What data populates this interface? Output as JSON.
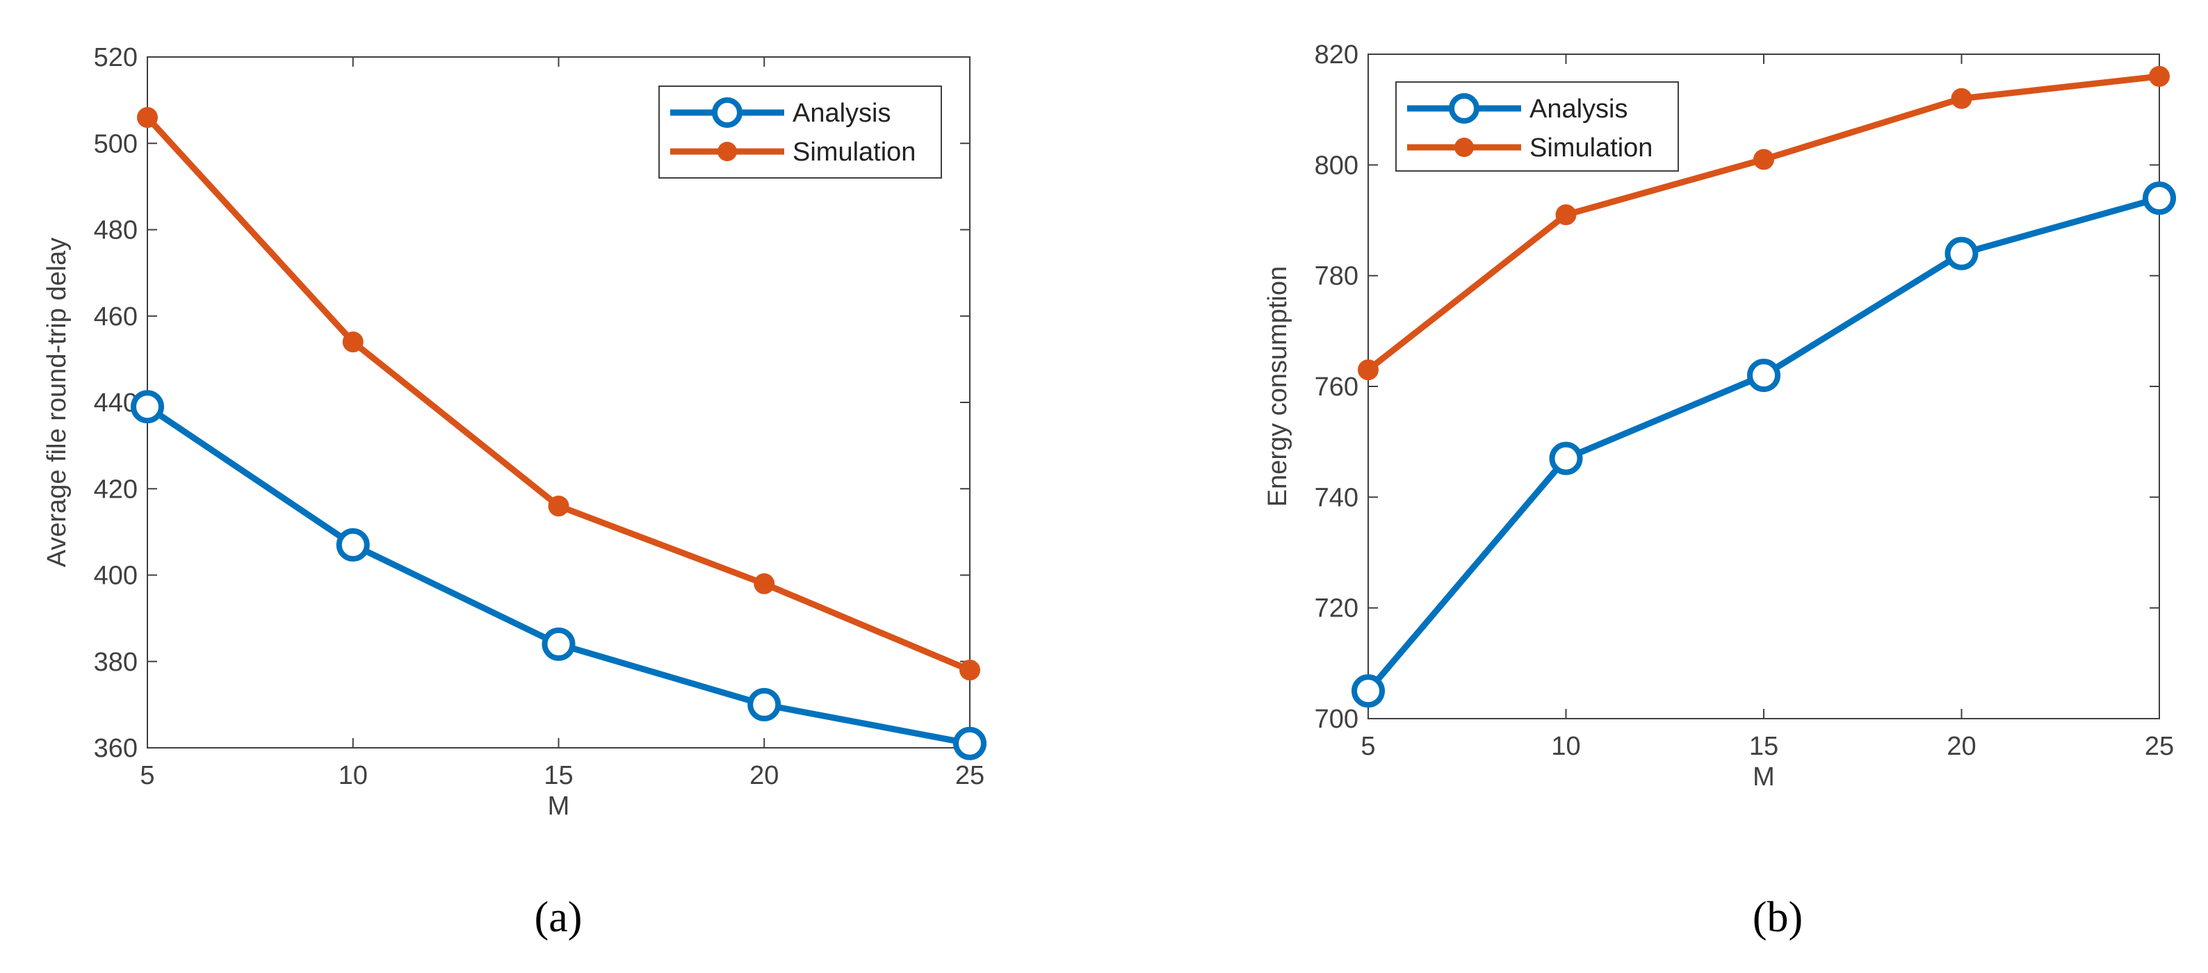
{
  "colors": {
    "analysis": "#0072BD",
    "simulation": "#D95319",
    "axis": "#404040"
  },
  "chart_data": [
    {
      "type": "line",
      "panel_label": "(a)",
      "title": "",
      "xlabel": "M",
      "ylabel": "Average file round-trip delay",
      "x": [
        5,
        10,
        15,
        20,
        25
      ],
      "xlim": [
        5,
        25
      ],
      "ylim": [
        360,
        520
      ],
      "xticks": [
        5,
        10,
        15,
        20,
        25
      ],
      "yticks": [
        360,
        380,
        400,
        420,
        440,
        460,
        480,
        500,
        520
      ],
      "grid": false,
      "legend_position": "top-right",
      "series": [
        {
          "name": "Analysis",
          "marker": "open-circle",
          "color": "#0072BD",
          "values": [
            439,
            407,
            384,
            370,
            361
          ]
        },
        {
          "name": "Simulation",
          "marker": "filled-circle",
          "color": "#D95319",
          "values": [
            506,
            454,
            416,
            398,
            378
          ]
        }
      ]
    },
    {
      "type": "line",
      "panel_label": "(b)",
      "title": "",
      "xlabel": "M",
      "ylabel": "Energy consumption",
      "x": [
        5,
        10,
        15,
        20,
        25
      ],
      "xlim": [
        5,
        25
      ],
      "ylim": [
        700,
        820
      ],
      "xticks": [
        5,
        10,
        15,
        20,
        25
      ],
      "yticks": [
        700,
        720,
        740,
        760,
        780,
        800,
        820
      ],
      "grid": false,
      "legend_position": "top-left",
      "series": [
        {
          "name": "Analysis",
          "marker": "open-circle",
          "color": "#0072BD",
          "values": [
            705,
            747,
            762,
            784,
            794
          ]
        },
        {
          "name": "Simulation",
          "marker": "filled-circle",
          "color": "#D95319",
          "values": [
            763,
            791,
            801,
            812,
            816
          ]
        }
      ]
    }
  ]
}
